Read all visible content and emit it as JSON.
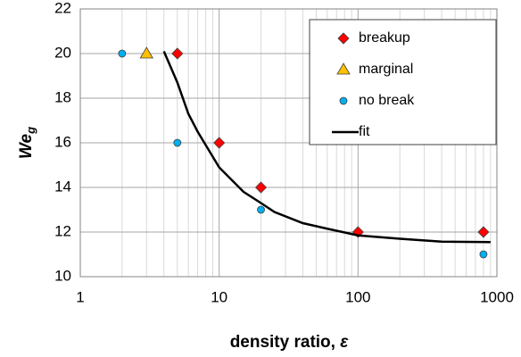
{
  "chart_data": {
    "type": "scatter",
    "xlabel": {
      "text": "density ratio, ",
      "symbol": "ε"
    },
    "ylabel": {
      "main": "We",
      "sub": "g"
    },
    "xscale": "log",
    "xlim": [
      1,
      1000
    ],
    "xticks": [
      1,
      10,
      100,
      1000
    ],
    "xminorticks": [
      2,
      3,
      4,
      5,
      6,
      7,
      8,
      9,
      20,
      30,
      40,
      50,
      60,
      70,
      80,
      90,
      200,
      300,
      400,
      500,
      600,
      700,
      800,
      900
    ],
    "ylim": [
      10,
      22
    ],
    "yticks": [
      10,
      12,
      14,
      16,
      18,
      20,
      22
    ],
    "grid": true,
    "legend": "upper right",
    "series": [
      {
        "name": "breakup",
        "marker": "diamond",
        "color": "#ff0000",
        "x": [
          5,
          10,
          20,
          100,
          800
        ],
        "values": [
          20,
          16,
          14,
          12,
          12
        ]
      },
      {
        "name": "marginal",
        "marker": "triangle",
        "color": "#ffc000",
        "x": [
          3
        ],
        "values": [
          20
        ]
      },
      {
        "name": "no break",
        "marker": "circle",
        "color": "#00b0f0",
        "x": [
          2,
          5,
          20,
          800
        ],
        "values": [
          20,
          16,
          13,
          11
        ]
      },
      {
        "name": "fit",
        "marker": "line",
        "color": "#000000",
        "x": [
          4,
          5,
          6,
          7,
          8,
          10,
          15,
          20,
          25,
          40,
          60,
          100,
          200,
          400,
          900
        ],
        "values": [
          20.1,
          18.7,
          17.3,
          16.5,
          15.9,
          14.9,
          13.8,
          13.3,
          12.9,
          12.4,
          12.15,
          11.85,
          11.7,
          11.57,
          11.55
        ]
      }
    ]
  }
}
